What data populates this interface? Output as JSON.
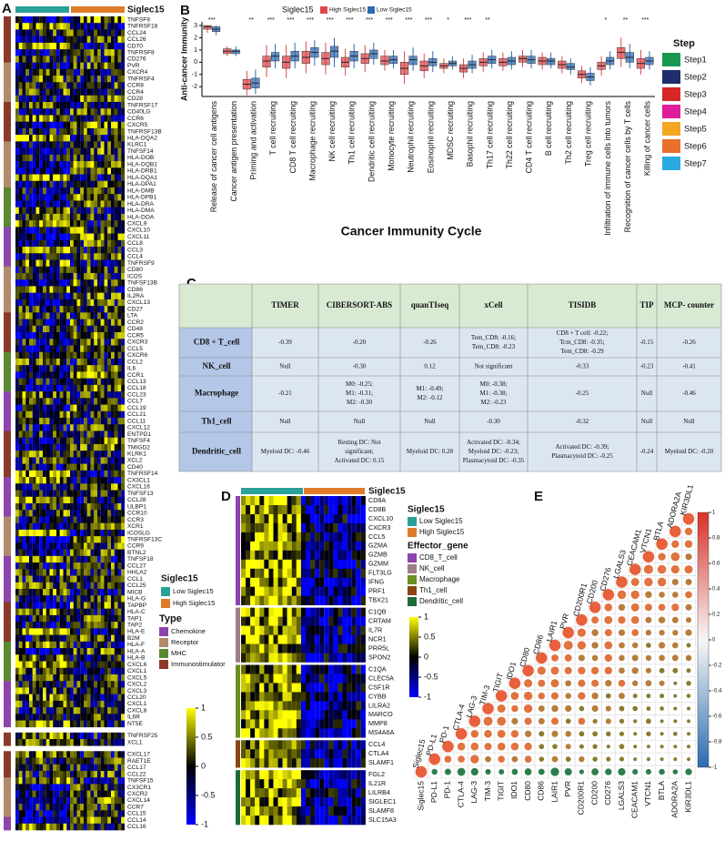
{
  "panel_labels": [
    "A",
    "B",
    "C",
    "D",
    "E"
  ],
  "panel_a": {
    "group_title": "Siglec15",
    "gene_blocks": [
      [
        "TNFSF9",
        "TNFRSF18",
        "CCL24",
        "CCL26",
        "CD70",
        "TNFRSF8",
        "CD276",
        "PVR",
        "CXCR4",
        "TNFRSF4",
        "CCR8",
        "CCR4",
        "CD28",
        "TNFRSF17",
        "CD40LG",
        "CCR6",
        "CXCR5",
        "TNFRSF13B",
        "HLA-DQA2",
        "KLRC1",
        "TNFSF14",
        "HLA-DOB",
        "HLA-DQB1",
        "HLA-DRB1",
        "HLA-DQA1",
        "HLA-DPA1",
        "HLA-DMB",
        "HLA-DPB1",
        "HLA-DRA",
        "HLA-DMA",
        "HLA-DOA",
        "CXCL9",
        "CXCL10",
        "CXCL11",
        "CCL8",
        "CCL3",
        "CCL4",
        "TNFRSF9",
        "CD80",
        "ICOS",
        "TNFSF13B",
        "CD86",
        "IL2RA",
        "CXCL13",
        "CD27",
        "LTA",
        "CCR2",
        "CD48",
        "CCR5",
        "CXCR3",
        "CCL5",
        "CXCR6",
        "CCL2",
        "IL6",
        "CCR1",
        "CCL13",
        "CCL18",
        "CCL23",
        "CCL7",
        "CCL19",
        "CCL21",
        "CCL11",
        "CXCL12",
        "ENTPD1",
        "TNFSF4",
        "TMIGD2",
        "KLRK1",
        "XCL2",
        "CD40",
        "TNFRSF14",
        "CX3CL1",
        "CXCL16",
        "TNFSF13",
        "CCL28",
        "ULBP1",
        "CCR10",
        "CCR3",
        "XCR1",
        "ICOSLG",
        "TNFRSF13C",
        "CCR9",
        "BTNL2",
        "TNFSF18",
        "CCL27",
        "HHLA2",
        "CCL1",
        "CCL25",
        "MICB",
        "HLA-G",
        "TAPBP",
        "HLA-C",
        "TAP1",
        "TAP2",
        "HLA-E",
        "B2M",
        "HLA-F",
        "HLA-A",
        "HLA-B",
        "CXCL6",
        "CXCL1",
        "CXCL5",
        "CXCL2",
        "CXCL3",
        "CCL20",
        "CXCL1",
        "CXCL8",
        "IL6R",
        "NT5E"
      ],
      [
        "TNFRSF25",
        "XCL1"
      ],
      [
        "CXCL17",
        "RAET1E",
        "CCL17",
        "CCL22",
        "TNFSF15",
        "CX3CR1",
        "CXCR2",
        "CXCL14",
        "CCR7",
        "CCL15",
        "CCL14",
        "CCL16"
      ]
    ],
    "legend_group_title": "Siglec15",
    "groups": [
      {
        "name": "Low Siglec15",
        "color": "#2aa198"
      },
      {
        "name": "High Siglec15",
        "color": "#e07b29"
      }
    ],
    "type_title": "Type",
    "types": [
      {
        "name": "Chemokine",
        "color": "#8e44ad"
      },
      {
        "name": "Receptor",
        "color": "#b08a6a"
      },
      {
        "name": "MHC",
        "color": "#5a8a2f"
      },
      {
        "name": "Immunostimulator",
        "color": "#8b3a2a"
      }
    ],
    "colorbar_ticks": [
      1,
      0.5,
      0,
      -0.5,
      -1
    ]
  },
  "chart_data": {
    "type": "box",
    "legend_title": "Siglec15",
    "y_label": "Anti-cancer Immunity",
    "x_label": "Cancer Immunity Cycle",
    "categories": [
      "Release of cancer cell antigens",
      "Cancer antigen presentation",
      "Priming and activation",
      "T cell recruiting",
      "CD8 T cell recruiting",
      "Macrophage recruiting",
      "NK cell recruiting",
      "Th1 cell recruiting",
      "Dendritic cell recruiting",
      "Monocyte recruiting",
      "Neutrophil recruiting",
      "Eosinophil recruiting",
      "MDSC recruiting",
      "Basophil recruiting",
      "Th17 cell recruiting",
      "Th22 cell recruiting",
      "CD4 T cell recruiting",
      "B cell recruiting",
      "Th2 cell recruiting",
      "Treg cell recruiting",
      "Infiltration of immune cells into tumors",
      "Recognition of cancer cells by T cells",
      "Killing of cancer cells"
    ],
    "category_colors": [
      "#1a9850",
      "#1f2d6b",
      "#d62728",
      "#d62728",
      "#d62728",
      "#c2188b",
      "#c2188b",
      "#c2188b",
      "#c2188b",
      "#c2188b",
      "#c2188b",
      "#c2188b",
      "#c2188b",
      "#c2188b",
      "#c2188b",
      "#c2188b",
      "#c2188b",
      "#c2188b",
      "#c2188b",
      "#c2188b",
      "#f5a623",
      "#e8702a",
      "#29abe2"
    ],
    "annotations": [
      "***",
      null,
      "**",
      "***",
      "***",
      "***",
      "***",
      "***",
      "***",
      "***",
      "***",
      "***",
      "*",
      "***",
      "**",
      null,
      null,
      null,
      null,
      null,
      "*",
      "**",
      "***"
    ],
    "series": [
      {
        "name": "High Siglec15",
        "color": "#e0474c",
        "median": [
          2.9,
          0.9,
          -1.8,
          0.1,
          0,
          0.4,
          0.3,
          0,
          0.3,
          0.1,
          -0.5,
          -0.3,
          -0.3,
          -0.5,
          0,
          0,
          0.3,
          0.1,
          -0.2,
          -1.0,
          -0.3,
          0.8,
          -0.1
        ],
        "q1": [
          2.7,
          0.7,
          -2.2,
          -0.4,
          -0.5,
          -0.1,
          -0.2,
          -0.4,
          -0.1,
          -0.2,
          -1.0,
          -0.7,
          -0.5,
          -0.8,
          -0.3,
          -0.3,
          0,
          -0.2,
          -0.5,
          -1.3,
          -0.6,
          0.3,
          -0.5
        ],
        "q3": [
          3.0,
          1.1,
          -1.4,
          0.5,
          0.5,
          0.9,
          0.8,
          0.4,
          0.7,
          0.5,
          0,
          0.1,
          -0.1,
          -0.2,
          0.3,
          0.3,
          0.5,
          0.4,
          0.1,
          -0.7,
          0,
          1.2,
          0.3
        ],
        "whisker_low": [
          2.4,
          0.5,
          -2.7,
          -1.2,
          -1.3,
          -0.9,
          -1.0,
          -1.1,
          -0.8,
          -0.7,
          -1.8,
          -1.3,
          -0.9,
          -1.3,
          -0.8,
          -0.7,
          -0.4,
          -0.6,
          -0.9,
          -1.7,
          -1.1,
          -0.4,
          -1.0
        ],
        "whisker_high": [
          3.0,
          1.3,
          -0.7,
          1.4,
          1.4,
          1.7,
          1.6,
          1.1,
          1.4,
          1.0,
          0.9,
          0.7,
          0.3,
          0.3,
          0.8,
          0.8,
          1.0,
          0.8,
          0.5,
          -0.3,
          0.5,
          2.0,
          1.0
        ]
      },
      {
        "name": "Low Siglec15",
        "color": "#2f6bb5",
        "median": [
          2.7,
          0.9,
          -1.7,
          0.5,
          0.5,
          0.8,
          0.9,
          0.5,
          0.7,
          0.2,
          0.2,
          0,
          -0.1,
          -0.2,
          0.2,
          0.1,
          0.2,
          0.1,
          -0.4,
          -1.2,
          0.1,
          0.4,
          0.1
        ],
        "q1": [
          2.5,
          0.7,
          -2.1,
          0.1,
          0.1,
          0.4,
          0.4,
          0.1,
          0.3,
          -0.1,
          -0.2,
          -0.3,
          -0.3,
          -0.5,
          -0.1,
          -0.2,
          -0.1,
          -0.2,
          -0.6,
          -1.5,
          -0.2,
          0,
          -0.2
        ],
        "q3": [
          2.9,
          1.0,
          -1.3,
          0.8,
          0.9,
          1.2,
          1.3,
          0.9,
          1.0,
          0.5,
          0.5,
          0.3,
          0.1,
          0.1,
          0.5,
          0.4,
          0.5,
          0.3,
          -0.1,
          -0.9,
          0.4,
          0.8,
          0.4
        ],
        "whisker_low": [
          2.2,
          0.5,
          -2.6,
          -0.5,
          -0.5,
          -0.3,
          -0.4,
          -0.5,
          -0.2,
          -0.5,
          -0.7,
          -0.8,
          -0.6,
          -0.9,
          -0.5,
          -0.6,
          -0.5,
          -0.5,
          -1.0,
          -1.9,
          -0.6,
          -0.5,
          -0.6
        ],
        "whisker_high": [
          3.0,
          1.3,
          -0.6,
          1.5,
          1.6,
          1.8,
          2.0,
          1.5,
          1.6,
          1.0,
          1.2,
          0.9,
          0.5,
          0.6,
          1.0,
          0.9,
          1.0,
          0.8,
          0.3,
          -0.4,
          0.9,
          1.5,
          0.9
        ]
      }
    ],
    "ylim": [
      -2.8,
      3.3
    ],
    "yticks": [
      3,
      2,
      1,
      0,
      -1,
      -2
    ],
    "step_title": "Step",
    "steps": [
      {
        "name": "Step1",
        "color": "#1a9850"
      },
      {
        "name": "Step2",
        "color": "#1f2d6b"
      },
      {
        "name": "Step3",
        "color": "#d62728"
      },
      {
        "name": "Step4",
        "color": "#e01e9b"
      },
      {
        "name": "Step5",
        "color": "#f5a623"
      },
      {
        "name": "Step6",
        "color": "#e8702a"
      },
      {
        "name": "Step7",
        "color": "#29abe2"
      }
    ]
  },
  "panel_c": {
    "columns": [
      "TIMER",
      "CIBERSORT-ABS",
      "quanTIseq",
      "xCell",
      "TISIDB",
      "TIP",
      "MCP- counter"
    ],
    "rows": [
      {
        "label": "CD8 + T_cell",
        "color": "#c0392b",
        "cells": [
          [
            "-0.39"
          ],
          [
            "-0.20"
          ],
          [
            "-0.26"
          ],
          [
            "Tem_CD8: -0.16;",
            "Tem_CD8: -0.23"
          ],
          [
            "CD8 + T cell: -0.22;",
            "Tcm_CD8: -0.35;",
            "Tem_CD8: -0.29"
          ],
          [
            "-0.15"
          ],
          [
            "-0.26"
          ]
        ]
      },
      {
        "label": "NK_cell",
        "color": "#1f2d6b",
        "cells": [
          [
            "Null"
          ],
          [
            "-0.30"
          ],
          [
            "0.12"
          ],
          [
            "Not significant"
          ],
          [
            "-0.33"
          ],
          [
            "-0.23"
          ],
          [
            "-0.41"
          ]
        ]
      },
      {
        "label": "Macrophage",
        "color": "#7b3f9e",
        "cells": [
          [
            "-0.21"
          ],
          [
            "M0: -0.25;",
            "M1: -0.31;",
            "M2: -0.30"
          ],
          [
            "M1: -0.49;",
            "M2: -0.12"
          ],
          [
            "M0: -0.38;",
            "M1: -0.38;",
            "M2: -0.23"
          ],
          [
            "-0.25"
          ],
          [
            "Null"
          ],
          [
            "-0.46"
          ]
        ]
      },
      {
        "label": "Th1_cell",
        "color": "#1f2d6b",
        "cells": [
          [
            "Null"
          ],
          [
            "Null"
          ],
          [
            "Null"
          ],
          [
            "-0.30"
          ],
          [
            "-0.32"
          ],
          [
            "Null"
          ],
          [
            "Null"
          ]
        ]
      },
      {
        "label": "Dendritic_cell",
        "color": "#7b3f9e",
        "cells": [
          [
            "Myeloid DC: -0.46"
          ],
          [
            "Resting DC: Not",
            "significant;",
            "Activated DC: 0.15"
          ],
          [
            "Myeloid DC: 0.28"
          ],
          [
            "Activated DC: -0.34;",
            "Myeloid DC: -0.23;",
            "Plasmacytoid DC: -0.35"
          ],
          [
            "Activated DC: -0.39;",
            "Plasmacytoid DC: -0.25"
          ],
          [
            "-0.24"
          ],
          [
            "Myeloid DC: -0.20"
          ]
        ]
      }
    ]
  },
  "panel_d": {
    "group_title": "Siglec15",
    "gene_blocks": [
      [
        "CD8A",
        "CD8B",
        "CXCL10",
        "CXCR3",
        "CCL5",
        "GZMA",
        "GZMB",
        "GZMM",
        "FLT3LG",
        "IFNG",
        "PRF1",
        "TBX21"
      ],
      [
        "C1QB",
        "CRTAM",
        "IL7R",
        "NCR1",
        "PRR5L",
        "SPON2"
      ],
      [
        "C1QA",
        "CLEC5A",
        "CSF1R",
        "CYBB",
        "LILRA2",
        "MARCO",
        "MMP8",
        "MS4A6A"
      ],
      [
        "CCL4",
        "CTLA4",
        "SLAMF1"
      ],
      [
        "FGL2",
        "IL21R",
        "LILRB4",
        "SIGLEC1",
        "SLAMF8",
        "SLC15A3"
      ]
    ],
    "legend_group_title": "Siglec15",
    "groups": [
      {
        "name": "Low Siglec15",
        "color": "#2aa198"
      },
      {
        "name": "High Siglec15",
        "color": "#e07b29"
      }
    ],
    "effector_title": "Effector_gene",
    "effectors": [
      {
        "name": "CD8_T_cell",
        "color": "#8e44ad"
      },
      {
        "name": "NK_cell",
        "color": "#9e7f86"
      },
      {
        "name": "Macrophage",
        "color": "#6b8e23"
      },
      {
        "name": "Th1_cell",
        "color": "#8b4513"
      },
      {
        "name": "Dendritic_cell",
        "color": "#1e6b3a"
      }
    ],
    "colorbar_ticks": [
      1,
      0.5,
      0,
      -0.5,
      -1
    ]
  },
  "panel_e": {
    "variables": [
      "Siglec15",
      "PD-L1",
      "PD-1",
      "CTLA-4",
      "LAG-3",
      "TIM-3",
      "TIGIT",
      "IDO1",
      "CD80",
      "CD86",
      "LAIR1",
      "PVR",
      "CD200R1",
      "CD200",
      "CD276",
      "LGALS3",
      "CEACAM1",
      "VTCN1",
      "BTLA",
      "ADORA2A",
      "KIR3DL1"
    ],
    "colorbar_ticks": [
      1,
      0.8,
      0.6,
      0.4,
      0.2,
      0,
      -0.2,
      -0.4,
      -0.6,
      -0.8,
      -1
    ]
  }
}
